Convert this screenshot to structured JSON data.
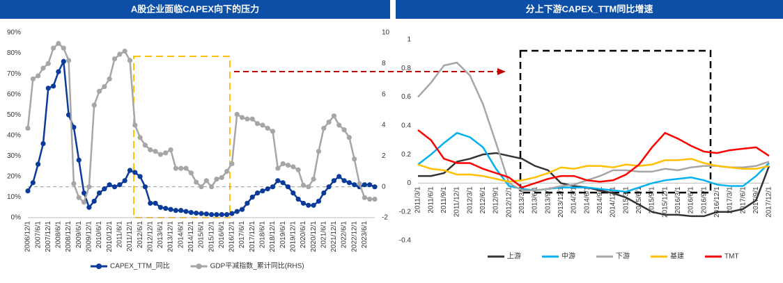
{
  "chart_data": [
    {
      "type": "line",
      "title": "A股企业面临CAPEX向下的压力",
      "categories": [
        "2006/12/1",
        null,
        "2007/6/1",
        null,
        "2007/12/1",
        null,
        "2008/6/1",
        null,
        "2008/12/1",
        null,
        "2009/6/1",
        null,
        "2009/12/1",
        null,
        "2010/6/1",
        null,
        "2010/12/1",
        null,
        "2011/6/1",
        null,
        "2011/12/1",
        null,
        "2012/6/1",
        null,
        "2012/12/1",
        null,
        "2013/6/1",
        null,
        "2013/12/1",
        null,
        "2014/6/1",
        null,
        "2014/12/1",
        null,
        "2015/6/1",
        null,
        "2015/12/1",
        null,
        "2016/6/1",
        null,
        "2016/12/1",
        null,
        "2017/6/1",
        null,
        "2017/12/1",
        null,
        "2018/6/1",
        null,
        "2018/12/1",
        null,
        "2019/6/1",
        null,
        "2019/12/1",
        null,
        "2020/6/1",
        null,
        "2020/12/1",
        null,
        "2021/6/1",
        null,
        "2021/12/1",
        null,
        "2022/6/1",
        null,
        "2022/12/1",
        null,
        "2023/6/1",
        null,
        null
      ],
      "series": [
        {
          "name": "CAPEX_TTM_同比",
          "color": "#0a3a9a",
          "marker": true,
          "values": [
            13,
            17,
            26,
            36,
            63,
            64,
            71,
            76,
            50,
            44,
            28,
            12,
            5,
            8,
            12,
            14,
            16,
            15,
            16,
            18,
            23,
            22,
            20,
            15,
            7,
            7,
            5,
            4.5,
            4,
            3.5,
            3.5,
            3,
            2.5,
            2.2,
            2,
            1.8,
            1.5,
            1.5,
            1.5,
            1.5,
            2,
            3,
            4,
            7,
            10,
            12,
            13,
            14,
            15,
            18,
            17,
            15,
            12,
            9,
            7,
            6,
            6,
            8,
            12,
            15,
            18,
            20,
            18,
            17,
            16,
            15,
            16,
            16,
            15
          ]
        },
        {
          "name": "GDP平减指数_累计同比(RHS)",
          "color": "#a6a6a6",
          "marker": true,
          "axis": "y2",
          "values": [
            3.8,
            7,
            7.2,
            7.7,
            8,
            9,
            9.3,
            9,
            8.2,
            0.2,
            -0.7,
            -1,
            0,
            5.3,
            6.2,
            6.5,
            7,
            8.3,
            8.6,
            8.8,
            8.2,
            4,
            3.2,
            2.7,
            2.4,
            2.3,
            2.1,
            2.2,
            2.4,
            1.2,
            1.2,
            1.2,
            0.9,
            0.3,
            0,
            0.4,
            0,
            0.5,
            0.6,
            1,
            1.5,
            4.7,
            4.5,
            4.4,
            4.4,
            4.1,
            4,
            3.8,
            3.6,
            1.2,
            1.5,
            1.4,
            1.3,
            1.1,
            0.1,
            0,
            0.5,
            2.3,
            3.8,
            4.2,
            4.6,
            4,
            3.7,
            3.2,
            1.8,
            0.2,
            -0.7,
            -0.8,
            -0.8
          ]
        }
      ],
      "ylim": [
        0,
        90
      ],
      "yticks": [
        {
          "value": 0,
          "label": "0%"
        },
        {
          "value": 10,
          "label": "10%"
        },
        {
          "value": 20,
          "label": "20%"
        },
        {
          "value": 30,
          "label": "30%"
        },
        {
          "value": 40,
          "label": "40%"
        },
        {
          "value": 50,
          "label": "50%"
        },
        {
          "value": 60,
          "label": "60%"
        },
        {
          "value": 70,
          "label": "70%"
        },
        {
          "value": 80,
          "label": "80%"
        },
        {
          "value": 90,
          "label": "90%"
        }
      ],
      "y2lim": [
        -2,
        10
      ],
      "y2ticks": [
        -2,
        0,
        2,
        4,
        6,
        8,
        10
      ],
      "hline": 15
    },
    {
      "type": "line",
      "title": "分上下游CAPEX_TTM同比增速",
      "categories": [
        "2011/3/1",
        "2011/6/1",
        "2011/9/1",
        "2011/12/1",
        "2012/3/1",
        "2012/6/1",
        "2012/9/1",
        "2012/12/1",
        "2013/3/1",
        "2013/6/1",
        "2013/9/1",
        "2013/12/1",
        "2014/3/1",
        "2014/6/1",
        "2014/9/1",
        "2014/12/1",
        "2015/3/1",
        "2015/6/1",
        "2015/9/1",
        "2015/12/1",
        "2016/3/1",
        "2016/6/1",
        "2016/9/1",
        "2016/12/1",
        "2017/3/1",
        "2017/6/1",
        "2017/9/1",
        "2017/12/1"
      ],
      "series": [
        {
          "name": "上游",
          "color": "#333333",
          "values": [
            0.05,
            0.05,
            0.07,
            0.15,
            0.17,
            0.2,
            0.21,
            0.19,
            0.17,
            0.12,
            0.09,
            0,
            -0.02,
            -0.03,
            -0.05,
            -0.07,
            -0.1,
            -0.15,
            -0.2,
            -0.22,
            -0.22,
            -0.23,
            -0.23,
            -0.2,
            -0.2,
            -0.18,
            -0.12,
            0.12
          ]
        },
        {
          "name": "中游",
          "color": "#00b0f0",
          "values": [
            0.13,
            0.2,
            0.28,
            0.35,
            0.32,
            0.25,
            0.1,
            -0.02,
            -0.04,
            -0.05,
            -0.04,
            -0.03,
            -0.03,
            -0.03,
            -0.04,
            -0.05,
            -0.06,
            -0.03,
            0,
            0.02,
            0.03,
            0.04,
            0.02,
            -0.01,
            -0.02,
            -0.02,
            0.05,
            0.14
          ]
        },
        {
          "name": "下游",
          "color": "#a6a6a6",
          "values": [
            0.6,
            0.7,
            0.82,
            0.84,
            0.75,
            0.55,
            0.28,
            0,
            -0.05,
            -0.05,
            -0.04,
            -0.02,
            -0.01,
            0.02,
            0.05,
            0.09,
            0.09,
            0.08,
            0.08,
            0.1,
            0.09,
            0.11,
            0.12,
            0.12,
            0.11,
            0.11,
            0.12,
            0.15
          ]
        },
        {
          "name": "基建",
          "color": "#ffc000",
          "values": [
            0.13,
            0.1,
            0.09,
            0.06,
            0.06,
            0.05,
            0.03,
            0.01,
            0.02,
            0.04,
            0.07,
            0.11,
            0.1,
            0.12,
            0.12,
            0.11,
            0.13,
            0.12,
            0.13,
            0.16,
            0.16,
            0.17,
            0.14,
            0.12,
            0.11,
            0.1,
            0.1,
            0.12
          ]
        },
        {
          "name": "TMT",
          "color": "#ff0000",
          "values": [
            0.37,
            0.3,
            0.17,
            0.14,
            0.14,
            0.1,
            0.07,
            0.04,
            -0.03,
            0,
            0.03,
            0.05,
            0.05,
            0.02,
            0.01,
            0.02,
            0.06,
            0.13,
            0.25,
            0.35,
            0.31,
            0.26,
            0.22,
            0.21,
            0.23,
            0.24,
            0.25,
            0.19
          ]
        }
      ],
      "ylim": [
        -0.4,
        1
      ],
      "yticks": [
        -0.4,
        -0.2,
        0,
        0.2,
        0.4,
        0.6,
        0.8,
        1
      ]
    }
  ]
}
